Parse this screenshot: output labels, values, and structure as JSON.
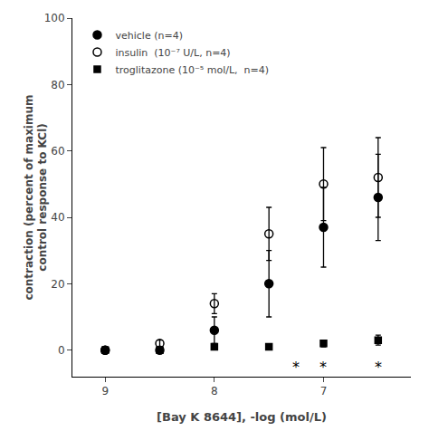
{
  "chart_data": {
    "type": "scatter",
    "xlabel": "[Bay K 8644], -log (mol/L)",
    "ylabel": "contraction (percent of maximum\ncontrol response to KCl)",
    "x": [
      9,
      8.5,
      8,
      7.5,
      7,
      6.5
    ],
    "series": [
      {
        "name": "vehicle (n=4)",
        "color": "black",
        "marker": "circle",
        "values": [
          0,
          0,
          6,
          20,
          37,
          46
        ],
        "errors": [
          1,
          1,
          4,
          10,
          12,
          13
        ]
      },
      {
        "name": "insulin  (10⁻⁷ U/L, n=4)",
        "color": "black",
        "marker": "circle-open",
        "values": [
          0,
          2,
          14,
          35,
          50,
          52
        ],
        "errors": [
          1,
          1,
          3,
          8,
          11,
          12
        ]
      },
      {
        "name": "troglitazone (10⁻⁵ mol/L,  n=4)",
        "color": "black",
        "marker": "square",
        "values": [
          0,
          0,
          1,
          1,
          2,
          3
        ],
        "errors": [
          0.3,
          0.3,
          0.5,
          0.5,
          1,
          1.5
        ]
      }
    ],
    "annotations": [
      {
        "x": 7.25,
        "y": -5,
        "text": "*"
      },
      {
        "x": 7.0,
        "y": -5,
        "text": "*"
      },
      {
        "x": 6.5,
        "y": -5,
        "text": "*"
      }
    ],
    "xlim": [
      9.3,
      6.2
    ],
    "ylim": [
      -8,
      100
    ],
    "xticks": [
      9,
      8,
      7
    ],
    "yticks": [
      0,
      20,
      40,
      60,
      80,
      100
    ],
    "grid": false,
    "legend": "upper left"
  }
}
